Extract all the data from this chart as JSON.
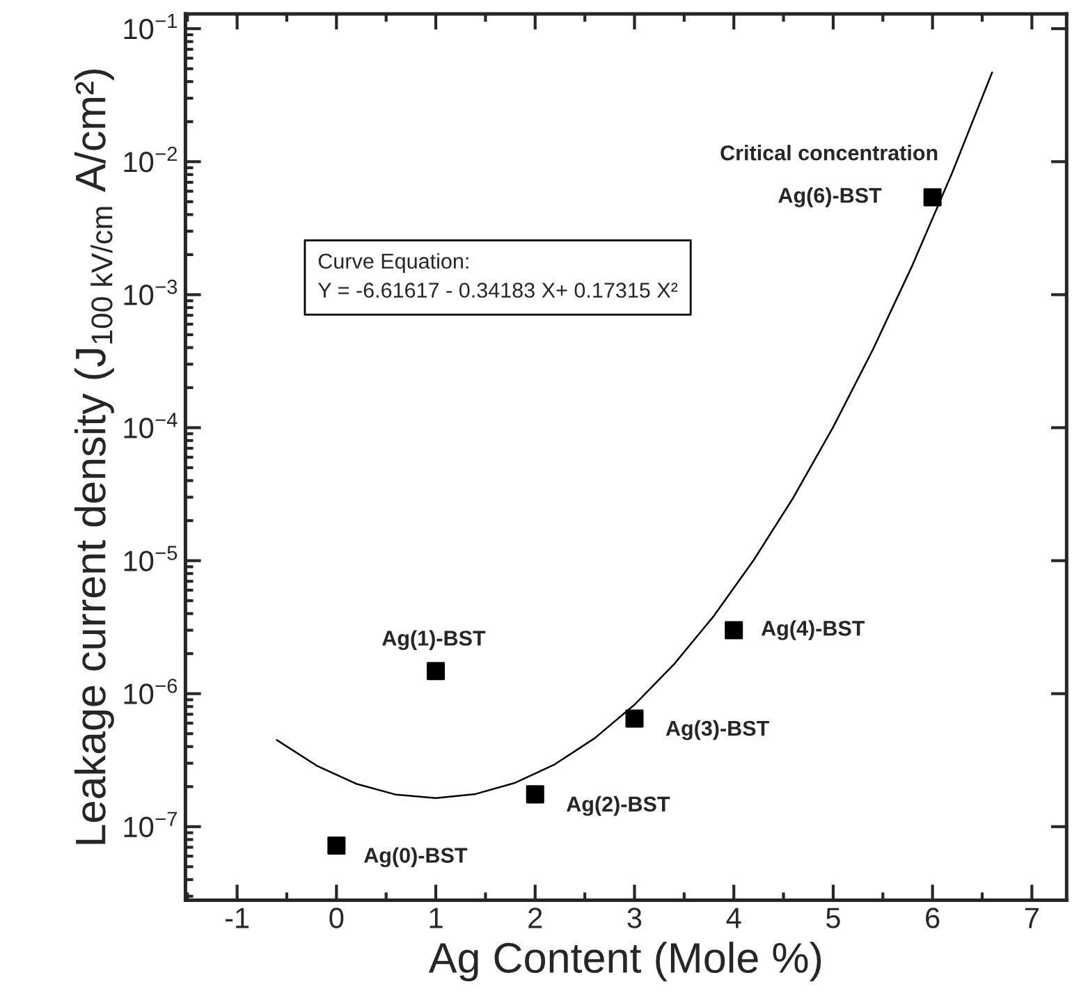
{
  "chart_data": {
    "type": "scatter",
    "xlabel": "Ag Content (Mole %)",
    "ylabel": "Leakage current density (J$_{100 kV/cm}$ A/cm²)",
    "log": "y",
    "grid": false,
    "xlim": [
      -1.52,
      7.35
    ],
    "xticks": [
      -1,
      0,
      1,
      2,
      3,
      4,
      5,
      6,
      7
    ],
    "ylim": [
      2.8e-08,
      0.129
    ],
    "yticks": [
      {
        "value": 1e-07,
        "label": "10$^{−7}$"
      },
      {
        "value": 1e-06,
        "label": "10$^{−6}$"
      },
      {
        "value": 1e-05,
        "label": "10$^{−5}$"
      },
      {
        "value": 0.0001,
        "label": "10$^{−4}$"
      },
      {
        "value": 0.001,
        "label": "10$^{−3}$"
      },
      {
        "value": 0.01,
        "label": "10$^{−2}$"
      },
      {
        "value": 0.1,
        "label": "10$^{−1}$"
      }
    ],
    "series": [
      {
        "marker": "square",
        "color": "#000000",
        "x": [
          0,
          1,
          2,
          3,
          4,
          6
        ],
        "values": [
          7.2e-08,
          1.48e-06,
          1.75e-07,
          6.5e-07,
          3e-06,
          0.0054
        ]
      },
      {
        "type": "line",
        "marker": "none",
        "line_style": "solid",
        "color": "#000000",
        "x": [
          -0.6,
          -0.2,
          0.2,
          0.6,
          1.0,
          1.4,
          1.8,
          2.2,
          2.6,
          3.0,
          3.4,
          3.8,
          4.2,
          4.6,
          5.0,
          5.4,
          5.8,
          6.2,
          6.6
        ],
        "values": [
          4.48e-07,
          2.88e-07,
          2.1e-07,
          1.74e-07,
          1.64e-07,
          1.76e-07,
          2.14e-07,
          2.95e-07,
          4.63e-07,
          8.26e-07,
          1.67e-06,
          3.85e-06,
          1.01e-05,
          2.99e-05,
          0.000101,
          0.000387,
          0.00168,
          0.00833,
          0.0469
        ]
      }
    ],
    "annotations": [
      {
        "text": "Ag(0)-BST",
        "x": 0,
        "y": 7.2e-08
      },
      {
        "text": "Ag(1)-BST",
        "x": 1,
        "y": 1.48e-06
      },
      {
        "text": "Ag(2)-BST",
        "x": 2,
        "y": 1.75e-07
      },
      {
        "text": "Ag(3)-BST",
        "x": 3,
        "y": 6.5e-07
      },
      {
        "text": "Ag(4)-BST",
        "x": 4,
        "y": 3e-06
      },
      {
        "text": "Ag(6)-BST",
        "x": 6,
        "y": 0.0054
      },
      {
        "text": "Critical concentration",
        "x": 6,
        "y": 0.0054
      },
      "Curve Equation:\nY = -6.61617 - 0.34183 X+ 0.17315 X²"
    ]
  }
}
